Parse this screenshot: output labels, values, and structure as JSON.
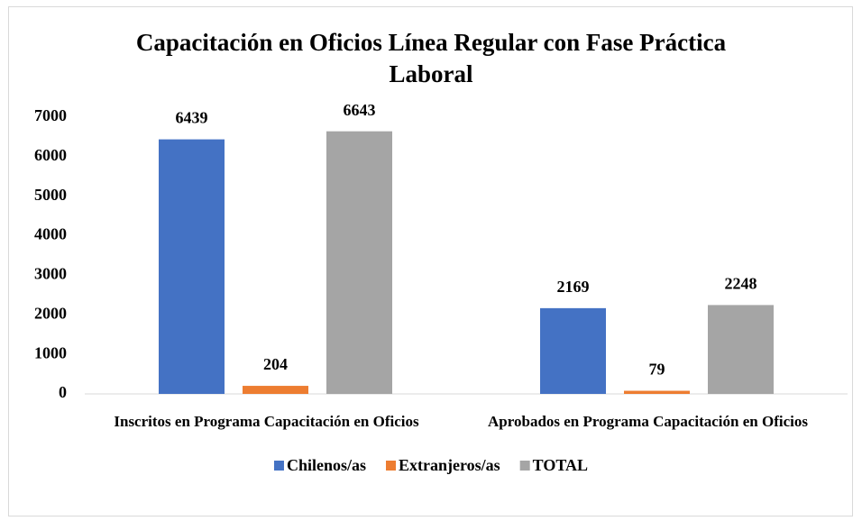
{
  "chart_data": {
    "type": "bar",
    "title": "Capacitación en Oficios Línea Regular con Fase Práctica Laboral",
    "categories": [
      "Inscritos en Programa Capacitación en Oficios",
      "Aprobados en Programa Capacitación en Oficios"
    ],
    "series": [
      {
        "name": "Chilenos/as",
        "color": "#4472c4",
        "values": [
          6439,
          2169
        ]
      },
      {
        "name": "Extranjeros/as",
        "color": "#ed7d31",
        "values": [
          204,
          79
        ]
      },
      {
        "name": "TOTAL",
        "color": "#a5a5a5",
        "values": [
          6643,
          2248
        ]
      }
    ],
    "ylim": [
      0,
      7000
    ],
    "yticks": [
      0,
      1000,
      2000,
      3000,
      4000,
      5000,
      6000,
      7000
    ],
    "grid": false,
    "legend": "bottom"
  }
}
